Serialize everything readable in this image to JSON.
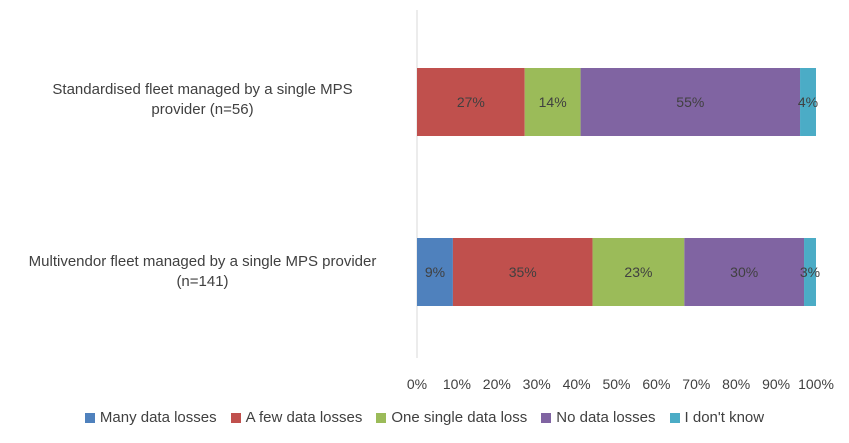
{
  "chart_data": {
    "type": "bar",
    "orientation": "horizontal",
    "stacked": "percent",
    "categories": [
      "Standardised fleet managed by a single MPS provider (n=56)",
      "Multivendor fleet managed by a single MPS provider (n=141)"
    ],
    "category_lines": [
      [
        "Standardised fleet managed by a single MPS",
        "provider (n=56)"
      ],
      [
        "Multivendor fleet managed by a single MPS provider",
        "(n=141)"
      ]
    ],
    "series": [
      {
        "name": "Many data losses",
        "color": "#4f81bd",
        "values": [
          0,
          9
        ],
        "labels": [
          "",
          "9%"
        ]
      },
      {
        "name": "A few data losses",
        "color": "#c0504d",
        "values": [
          27,
          35
        ],
        "labels": [
          "27%",
          "35%"
        ]
      },
      {
        "name": "One single data loss",
        "color": "#9bbb59",
        "values": [
          14,
          23
        ],
        "labels": [
          "14%",
          "23%"
        ]
      },
      {
        "name": "No data losses",
        "color": "#8064a2",
        "values": [
          55,
          30
        ],
        "labels": [
          "55%",
          "30%"
        ]
      },
      {
        "name": "I don't know",
        "color": "#4bacc6",
        "values": [
          4,
          3
        ],
        "labels": [
          "4%",
          "3%"
        ]
      }
    ],
    "xlim": [
      0,
      100
    ],
    "x_ticks": [
      "0%",
      "10%",
      "20%",
      "30%",
      "40%",
      "50%",
      "60%",
      "70%",
      "80%",
      "90%",
      "100%"
    ],
    "grid": false,
    "legend_position": "bottom"
  }
}
